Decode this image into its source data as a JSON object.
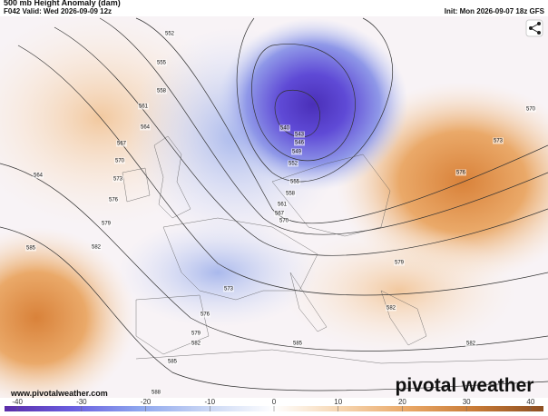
{
  "header": {
    "title": "500 mb Height Anomaly (dam)",
    "valid": "F042 Valid: Wed 2026-09-09 12z",
    "init": "Init: Mon 2026-09-07 18z GFS"
  },
  "contour_labels": [
    552,
    555,
    558,
    561,
    564,
    567,
    570,
    573,
    576,
    579,
    585,
    582,
    564,
    540,
    543,
    546,
    549,
    552,
    555,
    558,
    561,
    567,
    570,
    570,
    573,
    576,
    579,
    573,
    576,
    579,
    582,
    582,
    582,
    585,
    585,
    588
  ],
  "watermark": "www.pivotalweather.com",
  "logo": "pivotal weather",
  "colorbar": {
    "ticks": [
      -40,
      -30,
      -20,
      -10,
      0,
      10,
      20,
      30,
      40
    ],
    "lim": [
      -42,
      42
    ],
    "colors": [
      "#5a2ca8",
      "#6a5ee0",
      "#8da6ee",
      "#c9d6f4",
      "#ffffff",
      "#f6d5b0",
      "#e9a766",
      "#c77a36",
      "#8d4f22"
    ]
  }
}
